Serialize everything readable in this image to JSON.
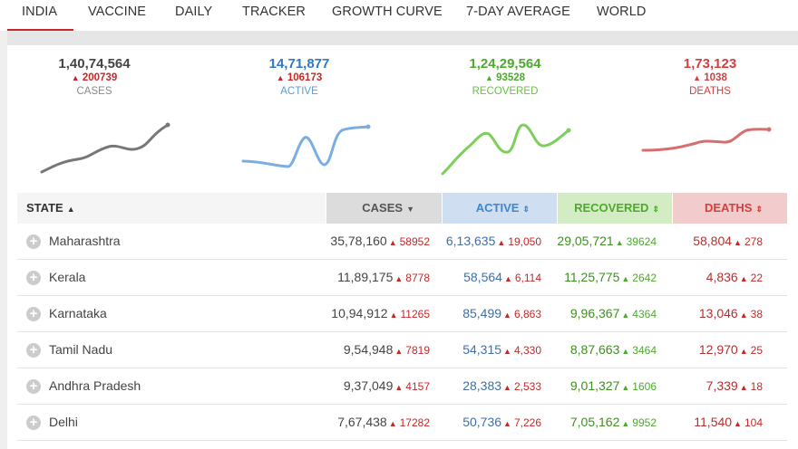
{
  "nav": {
    "tabs": [
      {
        "label": "INDIA"
      },
      {
        "label": "VACCINE"
      },
      {
        "label": "DAILY"
      },
      {
        "label": "TRACKER"
      },
      {
        "label": "GROWTH CURVE"
      },
      {
        "label": "7-DAY AVERAGE"
      },
      {
        "label": "WORLD"
      }
    ]
  },
  "summary": {
    "cases": {
      "total": "1,40,74,564",
      "delta": "200739",
      "label": "CASES",
      "color": "#444444",
      "delta_color": "#c62828"
    },
    "active": {
      "total": "14,71,877",
      "delta": "106173",
      "label": "ACTIVE",
      "color": "#2f78c4",
      "delta_color": "#c62828"
    },
    "recovered": {
      "total": "1,24,29,564",
      "delta": "93528",
      "label": "RECOVERED",
      "color": "#4caa2c",
      "delta_color": "#4caa2c"
    },
    "deaths": {
      "total": "1,73,123",
      "delta": "1038",
      "label": "DEATHS",
      "color": "#d23f3f",
      "delta_color": "#d23f3f"
    }
  },
  "table": {
    "headers": {
      "state": "STATE",
      "cases": "CASES",
      "active": "ACTIVE",
      "recovered": "RECOVERED",
      "deaths": "DEATHS"
    },
    "rows": [
      {
        "state": "Maharashtra",
        "cases": "35,78,160",
        "cases_delta": "58952",
        "active": "6,13,635",
        "active_delta": "19,050",
        "recovered": "29,05,721",
        "recovered_delta": "39624",
        "deaths": "58,804",
        "deaths_delta": "278"
      },
      {
        "state": "Kerala",
        "cases": "11,89,175",
        "cases_delta": "8778",
        "active": "58,564",
        "active_delta": "6,114",
        "recovered": "11,25,775",
        "recovered_delta": "2642",
        "deaths": "4,836",
        "deaths_delta": "22"
      },
      {
        "state": "Karnataka",
        "cases": "10,94,912",
        "cases_delta": "11265",
        "active": "85,499",
        "active_delta": "6,863",
        "recovered": "9,96,367",
        "recovered_delta": "4364",
        "deaths": "13,046",
        "deaths_delta": "38"
      },
      {
        "state": "Tamil Nadu",
        "cases": "9,54,948",
        "cases_delta": "7819",
        "active": "54,315",
        "active_delta": "4,330",
        "recovered": "8,87,663",
        "recovered_delta": "3464",
        "deaths": "12,970",
        "deaths_delta": "25"
      },
      {
        "state": "Andhra Pradesh",
        "cases": "9,37,049",
        "cases_delta": "4157",
        "active": "28,383",
        "active_delta": "2,533",
        "recovered": "9,01,327",
        "recovered_delta": "1606",
        "deaths": "7,339",
        "deaths_delta": "18"
      },
      {
        "state": "Delhi",
        "cases": "7,67,438",
        "cases_delta": "17282",
        "active": "50,736",
        "active_delta": "7,226",
        "recovered": "7,05,162",
        "recovered_delta": "9952",
        "deaths": "11,540",
        "deaths_delta": "104"
      }
    ]
  },
  "icons": {
    "up_arrow": "▲",
    "sort": "sort-arrows-icon",
    "sort_desc": "sort-down-icon",
    "expand": "plus-circle-icon"
  }
}
